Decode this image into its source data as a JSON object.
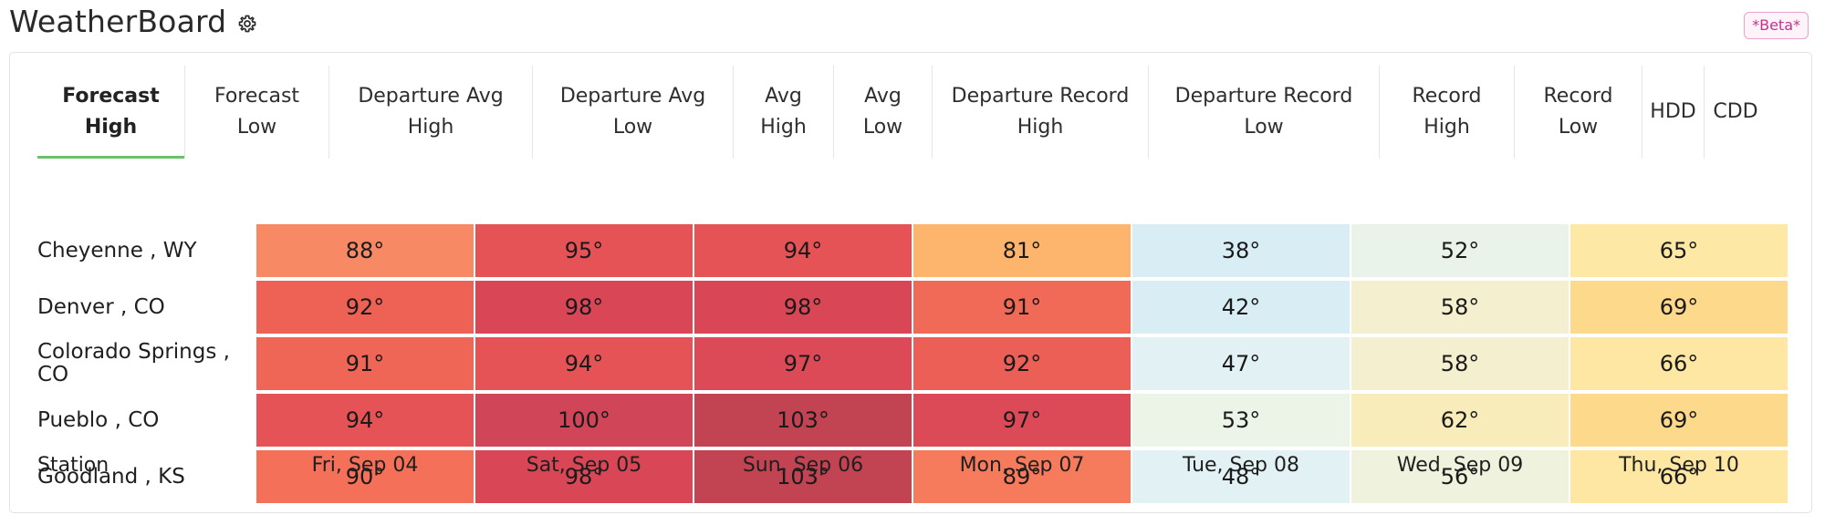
{
  "app": {
    "title": "WeatherBoard",
    "beta_label": "*Beta*"
  },
  "tabs": [
    {
      "label": "Forecast\nHigh",
      "active": true
    },
    {
      "label": "Forecast\nLow"
    },
    {
      "label": "Departure Avg\nHigh"
    },
    {
      "label": "Departure Avg\nLow"
    },
    {
      "label": "Avg\nHigh"
    },
    {
      "label": "Avg\nLow"
    },
    {
      "label": "Departure Record\nHigh"
    },
    {
      "label": "Departure Record\nLow"
    },
    {
      "label": "Record\nHigh"
    },
    {
      "label": "Record\nLow"
    },
    {
      "label": "HDD"
    },
    {
      "label": "CDD"
    }
  ],
  "table": {
    "station_header": "Station",
    "dates": [
      "Fri, Sep 04",
      "Sat, Sep 05",
      "Sun, Sep 06",
      "Mon, Sep 07",
      "Tue, Sep 08",
      "Wed, Sep 09",
      "Thu, Sep 10"
    ],
    "rows": [
      {
        "station": "Cheyenne , WY",
        "values": [
          "88°",
          "95°",
          "94°",
          "81°",
          "38°",
          "52°",
          "65°"
        ],
        "colors": [
          "#f78a64",
          "#e65356",
          "#e65356",
          "#fdb56e",
          "#d8eef4",
          "#e9f3e9",
          "#fde8a5"
        ]
      },
      {
        "station": "Denver , CO",
        "values": [
          "92°",
          "98°",
          "98°",
          "91°",
          "42°",
          "58°",
          "69°"
        ],
        "colors": [
          "#ee6155",
          "#d94656",
          "#d94656",
          "#f06a57",
          "#d8eef4",
          "#f4f0cf",
          "#fdd98c"
        ]
      },
      {
        "station": "Colorado Springs ,\nCO",
        "values": [
          "91°",
          "94°",
          "97°",
          "92°",
          "47°",
          "58°",
          "66°"
        ],
        "colors": [
          "#ef6656",
          "#e65356",
          "#dd4a57",
          "#ec5f56",
          "#e2f1f3",
          "#f4f0cf",
          "#fde7a2"
        ]
      },
      {
        "station": "Pueblo , CO",
        "values": [
          "94°",
          "100°",
          "103°",
          "97°",
          "53°",
          "62°",
          "69°"
        ],
        "colors": [
          "#e65356",
          "#d04557",
          "#c24352",
          "#dd4a57",
          "#ecf4e8",
          "#f9ecbb",
          "#fdd98c"
        ]
      },
      {
        "station": "Goodland , KS",
        "values": [
          "90°",
          "98°",
          "103°",
          "89°",
          "48°",
          "56°",
          "66°"
        ],
        "colors": [
          "#f47058",
          "#d94656",
          "#c24352",
          "#f67a5c",
          "#e2f1f3",
          "#eff2dc",
          "#fde7a2"
        ]
      }
    ]
  }
}
